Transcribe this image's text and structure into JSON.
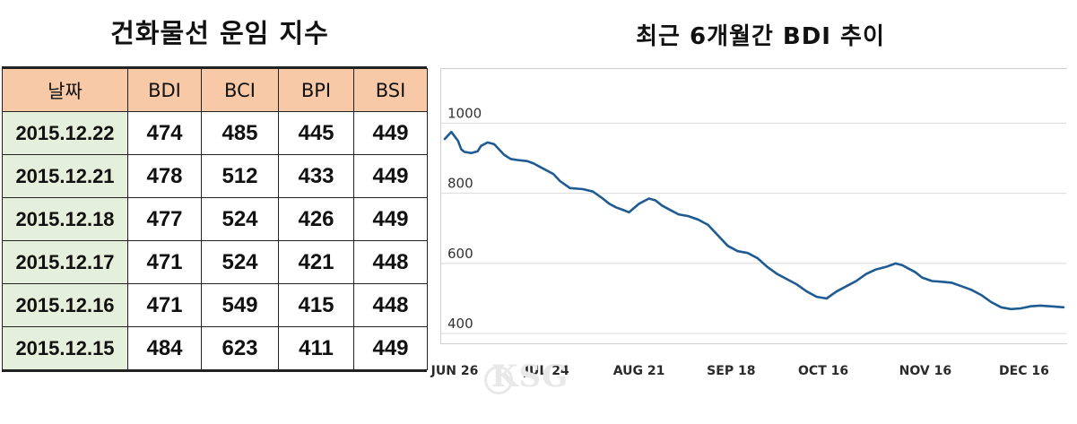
{
  "table": {
    "title": "건화물선 운임 지수",
    "headers": [
      "날짜",
      "BDI",
      "BCI",
      "BPI",
      "BSI"
    ],
    "rows": [
      [
        "2015.12.22",
        "474",
        "485",
        "445",
        "449"
      ],
      [
        "2015.12.21",
        "478",
        "512",
        "433",
        "449"
      ],
      [
        "2015.12.18",
        "477",
        "524",
        "426",
        "449"
      ],
      [
        "2015.12.17",
        "471",
        "524",
        "421",
        "448"
      ],
      [
        "2015.12.16",
        "471",
        "549",
        "415",
        "448"
      ],
      [
        "2015.12.15",
        "484",
        "623",
        "411",
        "449"
      ]
    ]
  },
  "chart_data": {
    "type": "line",
    "title": "최근 6개월간 BDI 추이",
    "xlabel": "",
    "ylabel": "",
    "ylim": [
      380,
      1070
    ],
    "xlim": [
      -3,
      185
    ],
    "yticks": [
      400,
      600,
      800,
      1000
    ],
    "xticks": [
      {
        "x": 0,
        "label": "JUN 26"
      },
      {
        "x": 28,
        "label": "JUL 24"
      },
      {
        "x": 56,
        "label": "AUG 21"
      },
      {
        "x": 84,
        "label": "SEP 18"
      },
      {
        "x": 112,
        "label": "OCT 16"
      },
      {
        "x": 143,
        "label": "NOV 16"
      },
      {
        "x": 173,
        "label": "DEC 16"
      }
    ],
    "grid": true,
    "line_color": "#1f5b93",
    "series": [
      {
        "x": [
          -3,
          -1,
          1,
          2,
          3,
          5,
          7,
          8,
          10,
          12,
          15,
          17,
          19,
          22,
          24,
          26,
          30,
          32,
          35,
          39,
          42,
          45,
          47,
          49,
          51,
          53,
          56,
          59,
          61,
          63,
          65,
          68,
          71,
          74,
          77,
          80,
          83,
          86,
          89,
          92,
          95,
          98,
          101,
          104,
          107,
          110,
          113,
          116,
          119,
          122,
          125,
          128,
          131,
          134,
          136,
          138,
          140,
          142,
          145,
          148,
          151,
          154,
          157,
          160,
          163,
          166,
          169,
          172,
          175,
          178,
          181,
          185
        ],
        "y": [
          955,
          975,
          950,
          925,
          918,
          915,
          920,
          935,
          945,
          940,
          910,
          898,
          895,
          892,
          885,
          875,
          855,
          835,
          815,
          812,
          805,
          785,
          770,
          760,
          753,
          746,
          770,
          785,
          780,
          765,
          755,
          740,
          735,
          725,
          710,
          680,
          650,
          635,
          630,
          615,
          590,
          570,
          555,
          540,
          520,
          505,
          500,
          520,
          535,
          550,
          570,
          583,
          590,
          600,
          595,
          585,
          575,
          560,
          550,
          548,
          545,
          535,
          525,
          510,
          490,
          475,
          470,
          472,
          478,
          480,
          478,
          475
        ]
      }
    ]
  },
  "watermark": "KSG"
}
